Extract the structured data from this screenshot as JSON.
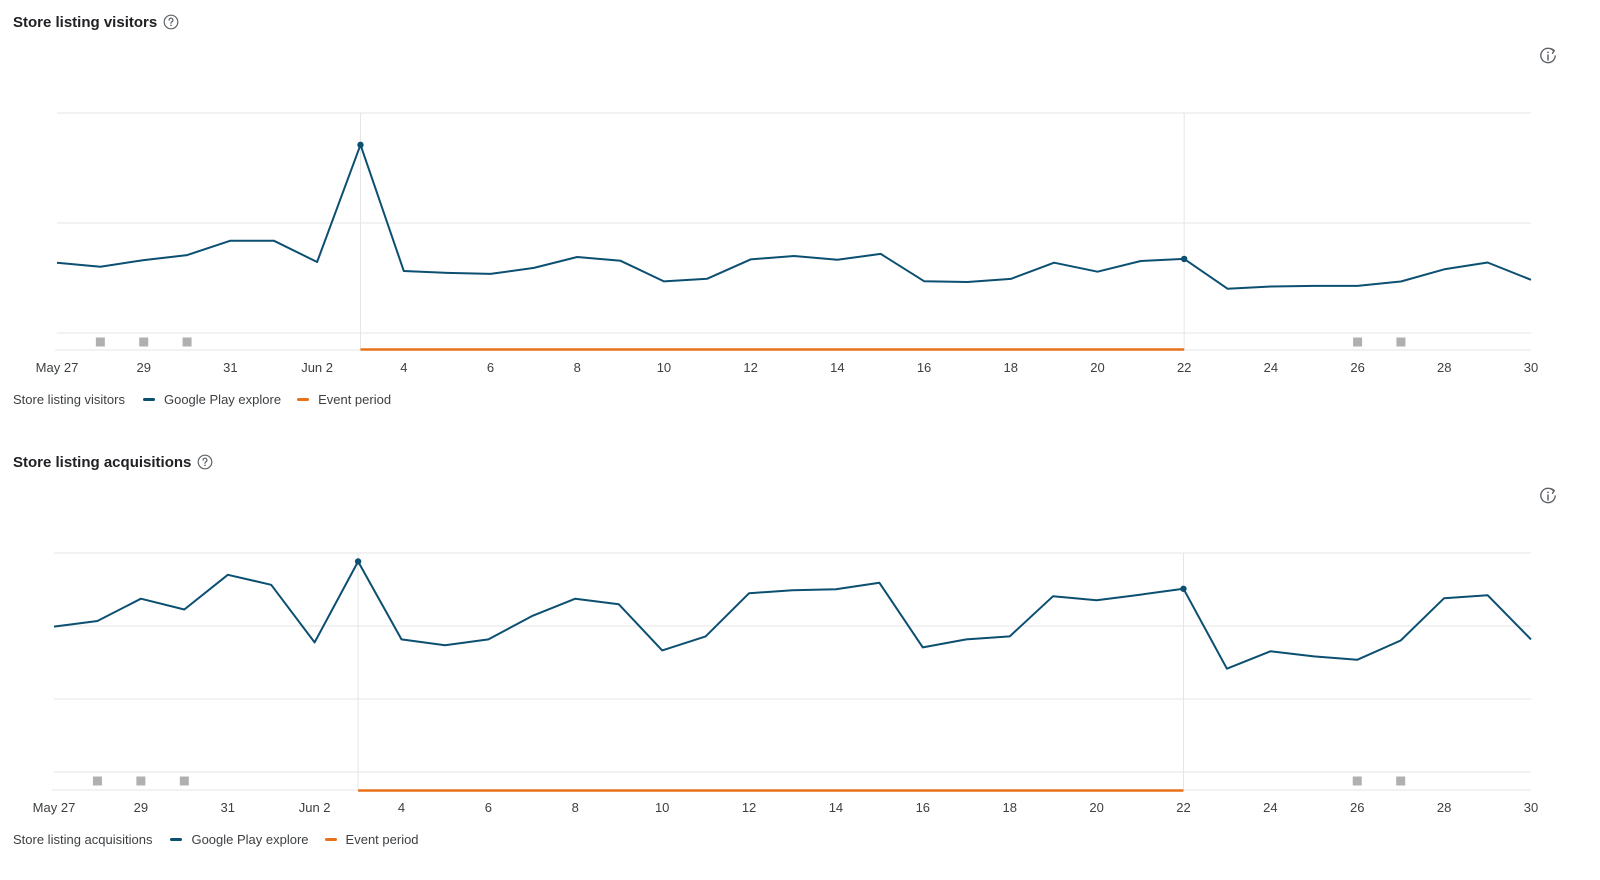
{
  "colors": {
    "series": "#0b4f71",
    "event": "#e8711a",
    "grid": "#e6e6e6",
    "marker": "#b0b0b0"
  },
  "x_tick_labels": [
    "May 27",
    "29",
    "31",
    "Jun 2",
    "4",
    "6",
    "8",
    "10",
    "12",
    "14",
    "16",
    "18",
    "20",
    "22",
    "24",
    "26",
    "28",
    "30"
  ],
  "charts": [
    {
      "id": "visitors",
      "title": "Store listing visitors",
      "help_icon": "help-circle-icon",
      "info_icon": "info-refresh-icon",
      "legend": {
        "metric": "Store listing visitors",
        "series": "Google Play explore",
        "event": "Event period"
      }
    },
    {
      "id": "acquisitions",
      "title": "Store listing acquisitions",
      "help_icon": "help-circle-icon",
      "info_icon": "info-refresh-icon",
      "legend": {
        "metric": "Store listing acquisitions",
        "series": "Google Play explore",
        "event": "Event period"
      }
    }
  ],
  "chart_data": [
    {
      "type": "line",
      "title": "Store listing visitors",
      "x": [
        "May 27",
        "May 28",
        "May 29",
        "May 30",
        "May 31",
        "Jun 1",
        "Jun 2",
        "Jun 3",
        "Jun 4",
        "Jun 5",
        "Jun 6",
        "Jun 7",
        "Jun 8",
        "Jun 9",
        "Jun 10",
        "Jun 11",
        "Jun 12",
        "Jun 13",
        "Jun 14",
        "Jun 15",
        "Jun 16",
        "Jun 17",
        "Jun 18",
        "Jun 19",
        "Jun 20",
        "Jun 21",
        "Jun 22",
        "Jun 23",
        "Jun 24",
        "Jun 25",
        "Jun 26",
        "Jun 27",
        "Jun 28",
        "Jun 29",
        "Jun 30"
      ],
      "series": [
        {
          "name": "Google Play explore",
          "values": [
            0.479,
            0.452,
            0.497,
            0.531,
            0.629,
            0.629,
            0.484,
            1.283,
            0.423,
            0.41,
            0.403,
            0.444,
            0.518,
            0.492,
            0.352,
            0.37,
            0.502,
            0.525,
            0.5,
            0.539,
            0.353,
            0.348,
            0.369,
            0.479,
            0.418,
            0.491,
            0.505,
            0.302,
            0.317,
            0.321,
            0.321,
            0.351,
            0.434,
            0.481,
            0.363
          ]
        }
      ],
      "highlighted_points": [
        "Jun 3",
        "Jun 22"
      ],
      "event_period": [
        "Jun 3",
        "Jun 22"
      ],
      "event_markers": [
        "May 28",
        "May 29",
        "May 30",
        "Jun 26",
        "Jun 27"
      ],
      "grid": true,
      "legend_position": "bottom-left"
    },
    {
      "type": "line",
      "title": "Store listing acquisitions",
      "x": [
        "May 27",
        "May 28",
        "May 29",
        "May 30",
        "May 31",
        "Jun 1",
        "Jun 2",
        "Jun 3",
        "Jun 4",
        "Jun 5",
        "Jun 6",
        "Jun 7",
        "Jun 8",
        "Jun 9",
        "Jun 10",
        "Jun 11",
        "Jun 12",
        "Jun 13",
        "Jun 14",
        "Jun 15",
        "Jun 16",
        "Jun 17",
        "Jun 18",
        "Jun 19",
        "Jun 20",
        "Jun 21",
        "Jun 22",
        "Jun 23",
        "Jun 24",
        "Jun 25",
        "Jun 26",
        "Jun 27",
        "Jun 28",
        "Jun 29",
        "Jun 30"
      ],
      "series": [
        {
          "name": "Google Play explore",
          "values": [
            1.992,
            2.068,
            2.374,
            2.226,
            2.702,
            2.564,
            1.776,
            2.884,
            1.816,
            1.735,
            1.816,
            2.136,
            2.374,
            2.299,
            1.666,
            1.857,
            2.449,
            2.489,
            2.503,
            2.592,
            1.707,
            1.816,
            1.857,
            2.408,
            2.354,
            2.429,
            2.51,
            1.415,
            1.653,
            1.584,
            1.537,
            1.802,
            2.381,
            2.422,
            1.816
          ]
        }
      ],
      "highlighted_points": [
        "Jun 3",
        "Jun 22"
      ],
      "event_period": [
        "Jun 3",
        "Jun 22"
      ],
      "event_markers": [
        "May 28",
        "May 29",
        "May 30",
        "Jun 26",
        "Jun 27"
      ],
      "grid": true,
      "legend_position": "bottom-left"
    }
  ]
}
